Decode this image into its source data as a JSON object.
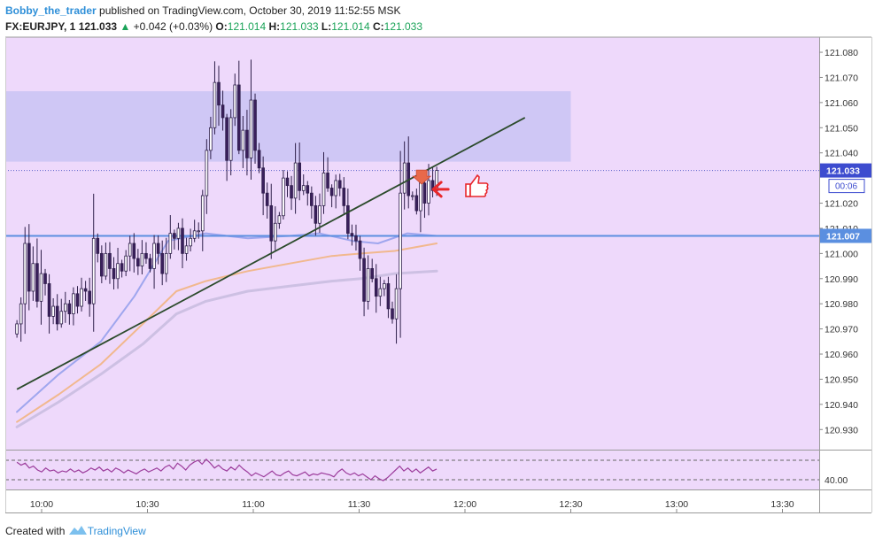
{
  "header": {
    "user": "Bobby_the_trader",
    "published": "published on TradingView.com, October 30, 2019 11:52:55 MSK",
    "symbol": "FX:EURJPY, 1",
    "last": "121.033",
    "change_arrow": "▲",
    "change": "+0.042 (+0.03%)",
    "o_label": "O:",
    "o": "121.014",
    "h_label": "H:",
    "h": "121.033",
    "l_label": "L:",
    "l": "121.014",
    "c_label": "C:",
    "c": "121.033"
  },
  "footer": {
    "created_with": "Created with",
    "brand": "TradingView",
    "brand_icon": "tradingview-logo-icon"
  },
  "colors": {
    "panel_bg": "#eed9fb",
    "zone": "#c9c3f3",
    "trendline": "#2b4a2b",
    "hline": "#5b8fe0",
    "candle_up": "#ffffff",
    "candle_down": "#3a1f5c",
    "ma_fast": "#9fa6ee",
    "ma_mid": "#f1b88e",
    "ma_slow": "#cdc0e3",
    "oscillator": "#9c3d9c",
    "price_badge": "#3d4ccf",
    "annotation_red": "#e8272b",
    "annotation_orange": "#e8694a"
  },
  "chart_data": {
    "type": "candlestick",
    "symbol": "FX:EURJPY",
    "timeframe": "1",
    "x_ticks": [
      "10:00",
      "10:30",
      "11:00",
      "11:30",
      "12:00",
      "12:30",
      "13:00",
      "13:30"
    ],
    "y_ticks": [
      "121.080",
      "121.070",
      "121.060",
      "121.050",
      "121.040",
      "121.020",
      "121.010",
      "121.000",
      "120.990",
      "120.980",
      "120.970",
      "120.960",
      "120.950",
      "120.940",
      "120.930"
    ],
    "y_range": [
      120.922,
      121.086
    ],
    "last_price": "121.033",
    "countdown": "00:06",
    "horizontal_level": "121.007",
    "resistance_zone": {
      "from": 121.0365,
      "to": 121.0645,
      "start_time": "09:53",
      "end_time": "12:30"
    },
    "trendline": {
      "start": {
        "time": "09:53",
        "price": 120.946
      },
      "end": {
        "time": "12:17",
        "price": 121.054
      }
    },
    "candles_time_range": {
      "start": "09:53",
      "end": "11:52"
    },
    "candles_close": [
      120.972,
      120.98,
      121.004,
      120.985,
      120.996,
      120.981,
      120.992,
      120.988,
      120.975,
      120.979,
      120.972,
      120.977,
      120.98,
      120.976,
      120.984,
      120.979,
      120.986,
      120.985,
      120.98,
      121.006,
      121.0,
      120.991,
      121.0,
      120.994,
      120.99,
      120.996,
      120.993,
      120.999,
      121.004,
      120.998,
      120.995,
      121.0,
      120.998,
      120.994,
      121.004,
      121.0,
      120.992,
      121.0,
      121.008,
      121.006,
      121.01,
      121.0,
      121.003,
      121.006,
      121.009,
      121.009,
      121.023,
      121.041,
      121.05,
      121.068,
      121.059,
      121.054,
      121.037,
      121.054,
      121.067,
      121.041,
      121.049,
      121.038,
      121.061,
      121.041,
      121.034,
      121.024,
      121.019,
      121.005,
      121.012,
      121.015,
      121.03,
      121.027,
      121.022,
      121.036,
      121.025,
      121.027,
      121.024,
      121.019,
      121.012,
      121.019,
      121.032,
      121.026,
      121.023,
      121.029,
      121.026,
      121.019,
      121.008,
      121.007,
      121.005,
      120.998,
      120.981,
      120.994,
      120.99,
      120.983,
      120.986,
      120.988,
      120.978,
      120.974,
      120.986,
      121.024,
      121.036,
      121.023,
      121.023,
      121.017,
      121.028,
      121.02,
      121.029,
      121.025,
      121.033
    ],
    "ma_fast": [
      [
        0,
        120.937
      ],
      [
        0.1,
        120.952
      ],
      [
        0.2,
        120.965
      ],
      [
        0.28,
        120.983
      ],
      [
        0.36,
        121.005
      ],
      [
        0.45,
        121.008
      ],
      [
        0.55,
        121.006
      ],
      [
        0.65,
        121.007
      ],
      [
        0.72,
        121.008
      ],
      [
        0.8,
        121.005
      ],
      [
        0.86,
        121.004
      ],
      [
        0.93,
        121.008
      ],
      [
        1,
        121.007
      ]
    ],
    "ma_mid": [
      [
        0,
        120.933
      ],
      [
        0.1,
        120.944
      ],
      [
        0.2,
        120.956
      ],
      [
        0.3,
        120.972
      ],
      [
        0.38,
        120.985
      ],
      [
        0.45,
        120.989
      ],
      [
        0.55,
        120.993
      ],
      [
        0.65,
        120.996
      ],
      [
        0.75,
        120.999
      ],
      [
        0.82,
        121.0
      ],
      [
        0.9,
        121.001
      ],
      [
        1,
        121.004
      ]
    ],
    "ma_slow": [
      [
        0,
        120.931
      ],
      [
        0.1,
        120.941
      ],
      [
        0.2,
        120.952
      ],
      [
        0.3,
        120.964
      ],
      [
        0.38,
        120.976
      ],
      [
        0.45,
        120.981
      ],
      [
        0.55,
        120.985
      ],
      [
        0.65,
        120.987
      ],
      [
        0.75,
        120.989
      ],
      [
        0.82,
        120.99
      ],
      [
        0.9,
        120.992
      ],
      [
        1,
        120.993
      ]
    ],
    "oscillator": {
      "y_tick": "40.00",
      "range": [
        30,
        70
      ],
      "bands": [
        60,
        40
      ],
      "values": [
        58,
        55,
        57,
        52,
        54,
        50,
        48,
        52,
        49,
        50,
        47,
        49,
        48,
        51,
        48,
        50,
        47,
        49,
        52,
        50,
        53,
        49,
        51,
        48,
        52,
        50,
        47,
        50,
        48,
        46,
        49,
        51,
        48,
        50,
        52,
        49,
        53,
        55,
        51,
        57,
        54,
        50,
        55,
        58,
        60,
        56,
        61,
        57,
        52,
        55,
        51,
        49,
        53,
        50,
        55,
        51,
        48,
        44,
        47,
        45,
        43,
        46,
        49,
        45,
        44,
        47,
        49,
        45,
        44,
        46,
        48,
        44,
        46,
        45,
        47,
        46,
        45,
        43,
        48,
        51,
        47,
        45,
        47,
        44,
        46,
        43,
        40,
        44,
        41,
        39,
        42,
        46,
        50,
        54,
        49,
        52,
        48,
        51,
        47,
        50,
        53,
        49,
        51
      ]
    }
  }
}
